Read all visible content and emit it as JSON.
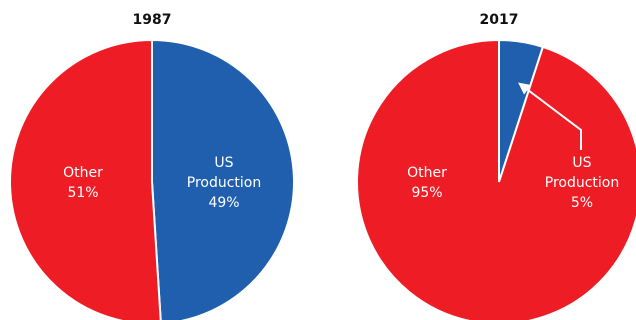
{
  "chart_data": [
    {
      "type": "pie",
      "title": "1987",
      "slices": [
        {
          "label": "US Production",
          "value": 49,
          "display": "49%",
          "color": "#1f5fae"
        },
        {
          "label": "Other",
          "value": 51,
          "display": "51%",
          "color": "#ee1c25"
        }
      ]
    },
    {
      "type": "pie",
      "title": "2017",
      "slices": [
        {
          "label": "US Production",
          "value": 5,
          "display": "5%",
          "color": "#1f5fae"
        },
        {
          "label": "Other",
          "value": 95,
          "display": "95%",
          "color": "#ee1c25"
        }
      ],
      "annotation": "arrow from US Production label to slice"
    }
  ]
}
